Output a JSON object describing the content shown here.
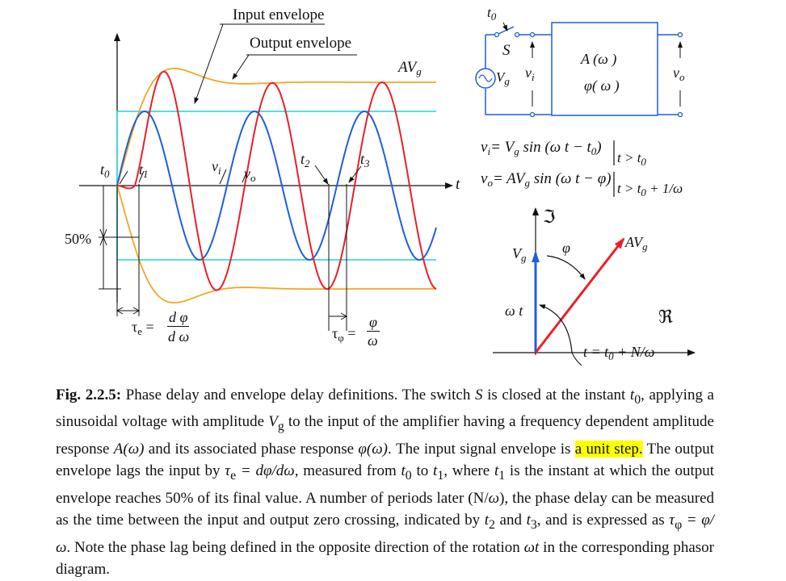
{
  "figure": {
    "left_labels": {
      "input_envelope": "Input envelope",
      "output_envelope": "Output envelope",
      "av_g": "AV",
      "av_g_sub": "g",
      "t0": "t",
      "t0_sub": "0",
      "t1": "t",
      "t1_sub": "1",
      "t2": "t",
      "t2_sub": "2",
      "t3": "t",
      "t3_sub": "3",
      "vi": "v",
      "vi_sub": "i",
      "vo": "v",
      "vo_sub": "o",
      "t_axis": "t",
      "fifty_percent": "50%",
      "tau_e": "τ",
      "tau_e_sub": "e",
      "tau_e_eq": "=",
      "tau_e_num": "d φ",
      "tau_e_den": "d ω",
      "tau_phi": "τ",
      "tau_phi_sub": "φ",
      "tau_phi_eq": "=",
      "tau_phi_num": "φ",
      "tau_phi_den": "ω"
    },
    "circuit": {
      "switch_time": "t",
      "switch_time_sub": "0",
      "switch_label": "S",
      "source_label": "V",
      "source_sub": "g",
      "vi": "v",
      "vi_sub": "i",
      "vo": "v",
      "vo_sub": "o",
      "block_line1": "A (ω )",
      "block_line2": "φ( ω )"
    },
    "equations": {
      "eq1_lhs": "v",
      "eq1_lhs_sub": "i",
      "eq1_rhs": "= V",
      "eq1_rhs_sub": "g",
      "eq1_rest": " sin (ω t − t",
      "eq1_rest_sub": "0",
      "eq1_close": ")",
      "eq1_cond": "t > t",
      "eq1_cond_sub": "0",
      "eq2_lhs": "v",
      "eq2_lhs_sub": "o",
      "eq2_rhs": "= AV",
      "eq2_rhs_sub": "g",
      "eq2_rest": " sin (ω t − φ)",
      "eq2_cond": "t > t",
      "eq2_cond_sub": "0",
      "eq2_cond_tail": " + 1/ω"
    },
    "phasor": {
      "imag_axis": "ℑ",
      "real_axis": "ℜ",
      "vg": "V",
      "vg_sub": "g",
      "avg": "AV",
      "avg_sub": "g",
      "phi": "φ",
      "omega_t": "ω t",
      "time_label": "t = t",
      "time_label_sub": "0",
      "time_label_tail": " + N/ω"
    },
    "colors": {
      "input_wave": "#1f5fd6",
      "output_wave": "#e8202a",
      "output_envelope": "#f5a623",
      "input_envelope": "#3fd9e0"
    }
  },
  "caption": {
    "label": "Fig. 2.2.5:",
    "part1": " Phase delay and envelope delay definitions. The switch ",
    "S": "S",
    "part2": " is closed at the instant ",
    "t0a": "t",
    "t0a_sub": "0",
    "part3": ", applying a sinusoidal voltage with amplitude ",
    "Vg": "V",
    "Vg_sub": "g",
    "part4": " to the input of the amplifier having a frequency dependent amplitude response ",
    "Aw": "A(ω)",
    "part5": " and its associated phase response ",
    "phiw": "φ(ω)",
    "part6": ". The input signal envelope is ",
    "highlight": "a unit step.",
    "part7": " The output envelope lags the input by ",
    "tau_expr": "τ",
    "tau_sub": "e",
    "tau_rhs": " = dφ/dω",
    "part8": ", measured from ",
    "t0b": "t",
    "t0b_sub": "0",
    "part9": " to ",
    "t1a": "t",
    "t1a_sub": "1",
    "part10": ", where ",
    "t1b": "t",
    "t1b_sub": "1",
    "part11": " is the instant at which the output envelope reaches 50% of its final value. A number of periods later (N/",
    "omega1": "ω",
    "part12": "), the phase delay can be measured as the time between the input and output zero crossing, indicated by ",
    "t2": "t",
    "t2_sub": "2",
    "part13": " and ",
    "t3": "t",
    "t3_sub": "3",
    "part14": ", and is expressed as ",
    "tphi": "τ",
    "tphi_sub": "φ",
    "tphi_rhs": " = φ/ω",
    "part15": ". Note the phase lag being defined in the opposite direction of the rotation ",
    "wt": "ωt",
    "part16": " in the corresponding phasor diagram."
  }
}
